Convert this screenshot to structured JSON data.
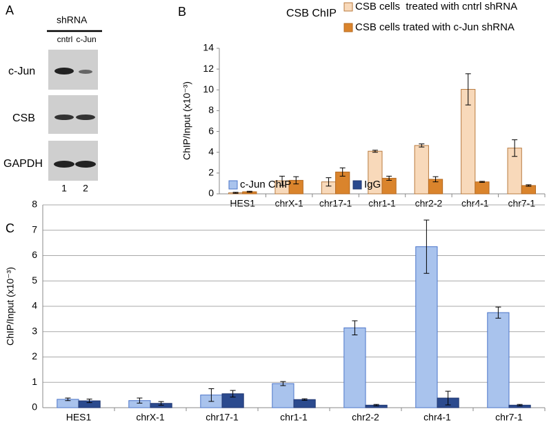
{
  "panel_a": {
    "label": "A",
    "header": "shRNA",
    "lanes": [
      "cntrl",
      "c-Jun"
    ],
    "rows": [
      "c-Jun",
      "CSB",
      "GAPDH"
    ],
    "lane_numbers": [
      "1",
      "2"
    ]
  },
  "chart_data": [
    {
      "type": "bar",
      "panel": "B",
      "title": "CSB ChIP",
      "y_label": "ChIP/Input (x10⁻³)",
      "categories": [
        "HES1",
        "chrX-1",
        "chr17-1",
        "chr1-1",
        "chr2-2",
        "chr4-1",
        "chr7-1"
      ],
      "series": [
        {
          "name": "CSB cells  treated with cntrl shRNA",
          "color": "#f8d9ba",
          "edgecolor": "#b87a3e",
          "values": [
            0.1,
            1.25,
            1.15,
            4.1,
            4.65,
            10.05,
            4.4
          ],
          "errors": [
            0.05,
            0.45,
            0.4,
            0.1,
            0.15,
            1.5,
            0.8
          ]
        },
        {
          "name": "CSB cells trated with c-Jun shRNA",
          "color": "#da842c",
          "edgecolor": "#b5691f",
          "values": [
            0.2,
            1.3,
            2.1,
            1.5,
            1.4,
            1.15,
            0.8
          ],
          "errors": [
            0.05,
            0.35,
            0.4,
            0.2,
            0.25,
            0.05,
            0.07
          ]
        }
      ],
      "ylim": [
        0,
        14
      ],
      "yticks": [
        0,
        2,
        4,
        6,
        8,
        10,
        12,
        14
      ],
      "grid": false,
      "legend": "top-right"
    },
    {
      "type": "bar",
      "panel": "C",
      "y_label": "ChIP/Input (x10⁻³)",
      "categories": [
        "HES1",
        "chrX-1",
        "chr17-1",
        "chr1-1",
        "chr2-2",
        "chr4-1",
        "chr7-1"
      ],
      "series": [
        {
          "name": "c-Jun ChIP",
          "color": "#a9c3ed",
          "edgecolor": "#4b74c9",
          "values": [
            0.33,
            0.28,
            0.5,
            0.95,
            3.15,
            6.35,
            3.75
          ],
          "errors": [
            0.05,
            0.1,
            0.25,
            0.08,
            0.28,
            1.05,
            0.22
          ]
        },
        {
          "name": "IgG",
          "color": "#2b4a8e",
          "edgecolor": "#1f3670",
          "values": [
            0.27,
            0.17,
            0.55,
            0.32,
            0.1,
            0.38,
            0.1
          ],
          "errors": [
            0.07,
            0.07,
            0.13,
            0.03,
            0.03,
            0.27,
            0.03
          ]
        }
      ],
      "ylim": [
        0,
        8
      ],
      "yticks": [
        0,
        1,
        2,
        3,
        4,
        5,
        6,
        7,
        8
      ],
      "grid": true,
      "legend": "top-center"
    }
  ]
}
